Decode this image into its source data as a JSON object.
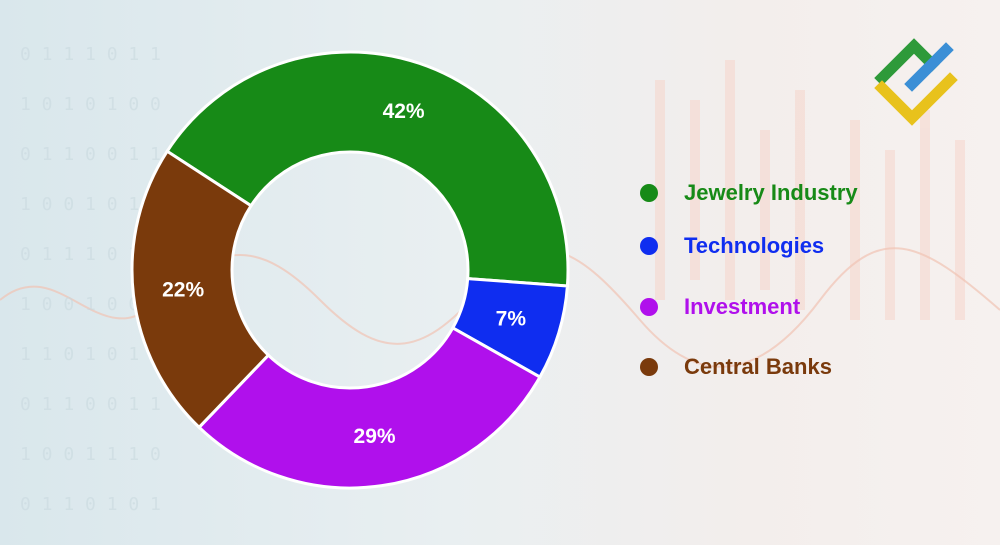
{
  "chart_data": {
    "type": "pie",
    "variant": "donut",
    "categories": [
      "Jewelry Industry",
      "Technologies",
      "Investment",
      "Central Banks"
    ],
    "values": [
      42,
      7,
      29,
      22
    ],
    "value_labels": [
      "42%",
      "7%",
      "29%",
      "22%"
    ],
    "colors": [
      "#178a17",
      "#0f2df0",
      "#b010ec",
      "#7a3a0c"
    ],
    "legend_position": "right"
  },
  "legend": {
    "items": [
      {
        "label": "Jewelry Industry",
        "color": "#178a17"
      },
      {
        "label": "Technologies",
        "color": "#0f2df0"
      },
      {
        "label": "Investment",
        "color": "#b010ec"
      },
      {
        "label": "Central Banks",
        "color": "#7a3a0c"
      }
    ]
  },
  "logo": {
    "icon": "brand-logo-icon",
    "colors": [
      "#2e9a3a",
      "#3b8fd6",
      "#e8c21c"
    ]
  }
}
